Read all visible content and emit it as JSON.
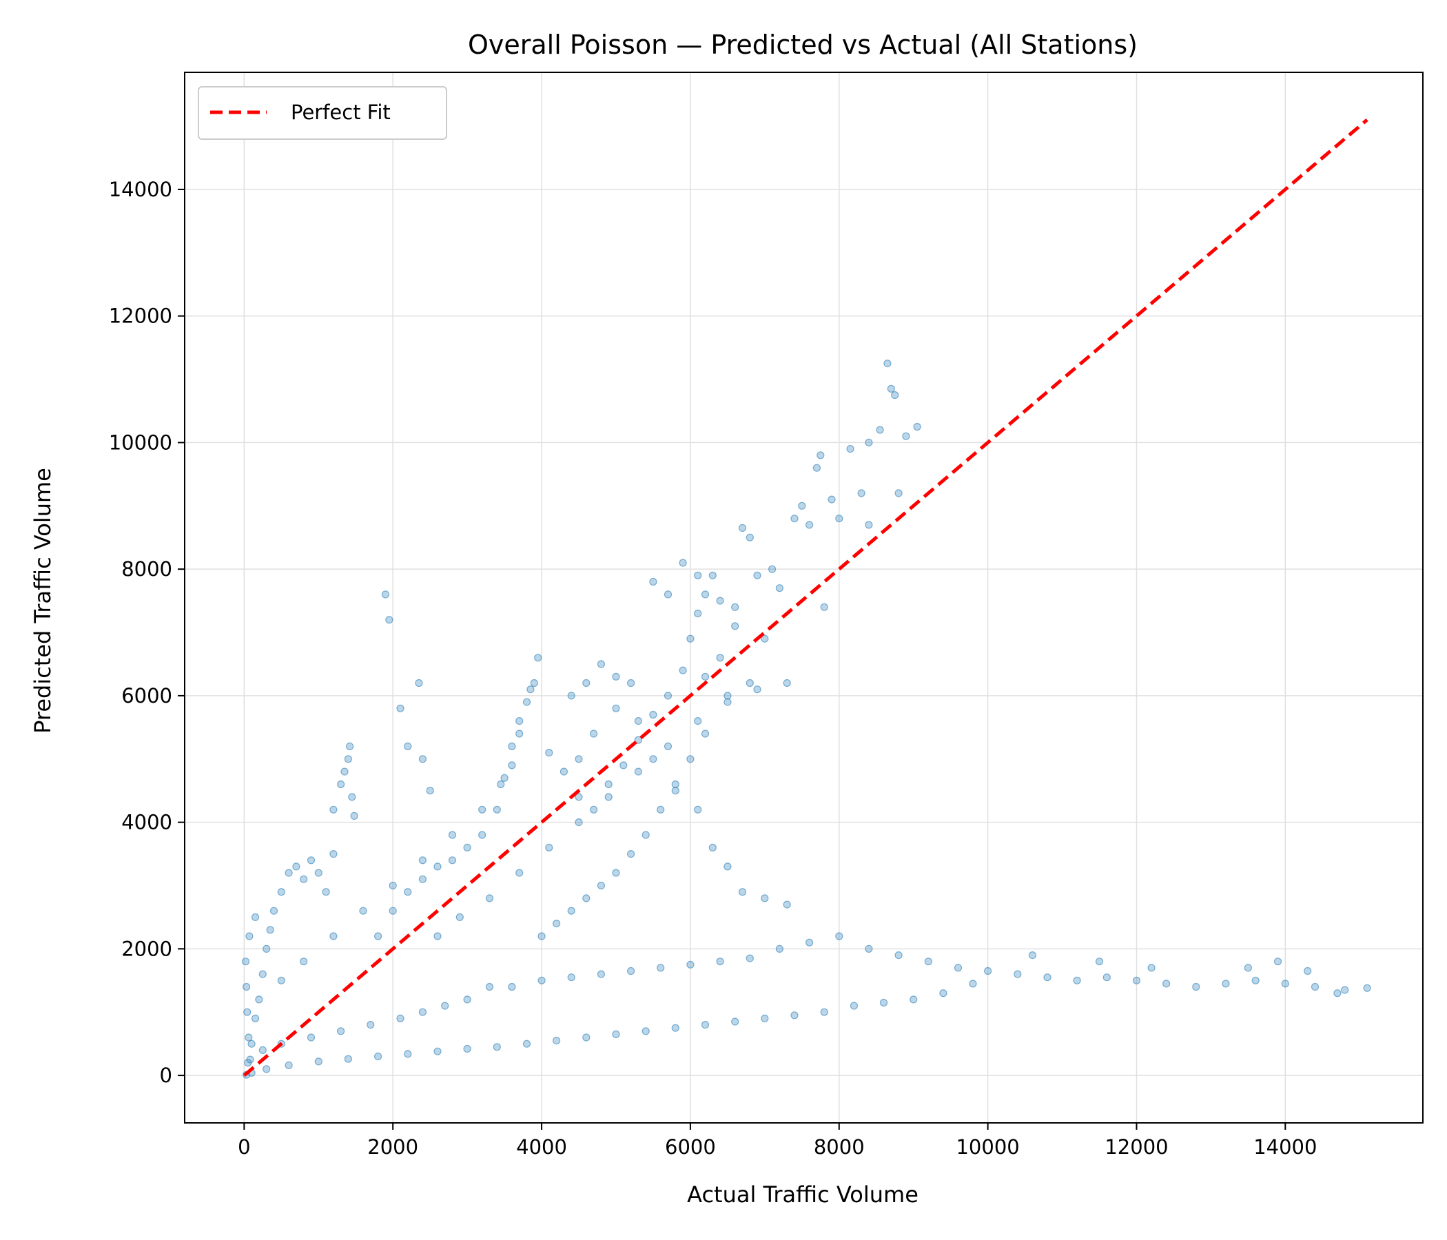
{
  "chart_data": {
    "type": "scatter",
    "title": "Overall Poisson — Predicted vs Actual (All Stations)",
    "xlabel": "Actual Traffic Volume",
    "ylabel": "Predicted Traffic Volume",
    "xlim": [
      -800,
      15850
    ],
    "ylim": [
      -750,
      15850
    ],
    "xticks": [
      0,
      2000,
      4000,
      6000,
      8000,
      10000,
      12000,
      14000
    ],
    "yticks": [
      0,
      2000,
      4000,
      6000,
      8000,
      10000,
      12000,
      14000
    ],
    "xtick_labels": [
      "0",
      "2000",
      "4000",
      "6000",
      "8000",
      "10000",
      "12000",
      "14000"
    ],
    "ytick_labels": [
      "0",
      "2000",
      "4000",
      "6000",
      "8000",
      "10000",
      "12000",
      "14000"
    ],
    "grid": true,
    "legend": {
      "position": "top-left",
      "entries": [
        "Perfect Fit"
      ]
    },
    "series": [
      {
        "kind": "scatter",
        "color": "#1f77b4",
        "opacity": 0.3,
        "points": [
          [
            50,
            200
          ],
          [
            100,
            500
          ],
          [
            150,
            900
          ],
          [
            200,
            1200
          ],
          [
            250,
            1600
          ],
          [
            300,
            2000
          ],
          [
            350,
            2300
          ],
          [
            400,
            2600
          ],
          [
            500,
            2900
          ],
          [
            600,
            3200
          ],
          [
            700,
            3300
          ],
          [
            800,
            3100
          ],
          [
            900,
            3400
          ],
          [
            1000,
            3200
          ],
          [
            1100,
            2900
          ],
          [
            1200,
            3500
          ],
          [
            1300,
            4600
          ],
          [
            1350,
            4800
          ],
          [
            1400,
            5000
          ],
          [
            1420,
            5200
          ],
          [
            1450,
            4400
          ],
          [
            1480,
            4100
          ],
          [
            1200,
            4200
          ],
          [
            1900,
            7600
          ],
          [
            1950,
            7200
          ],
          [
            2100,
            5800
          ],
          [
            2350,
            6200
          ],
          [
            2200,
            5200
          ],
          [
            2400,
            5000
          ],
          [
            2500,
            4500
          ],
          [
            1800,
            2200
          ],
          [
            2000,
            2600
          ],
          [
            2200,
            2900
          ],
          [
            2400,
            3100
          ],
          [
            2600,
            3300
          ],
          [
            2800,
            3400
          ],
          [
            3000,
            3600
          ],
          [
            3200,
            3800
          ],
          [
            3400,
            4200
          ],
          [
            3500,
            4700
          ],
          [
            3600,
            5200
          ],
          [
            3700,
            5600
          ],
          [
            3800,
            5900
          ],
          [
            3900,
            6200
          ],
          [
            3950,
            6600
          ],
          [
            3850,
            6100
          ],
          [
            3700,
            5400
          ],
          [
            3600,
            4900
          ],
          [
            3450,
            4600
          ],
          [
            4100,
            5100
          ],
          [
            4300,
            4800
          ],
          [
            4500,
            4400
          ],
          [
            4700,
            4200
          ],
          [
            4900,
            4600
          ],
          [
            5100,
            4900
          ],
          [
            5300,
            5300
          ],
          [
            5500,
            5700
          ],
          [
            5700,
            6000
          ],
          [
            5900,
            6400
          ],
          [
            6000,
            6900
          ],
          [
            6100,
            7300
          ],
          [
            6200,
            7600
          ],
          [
            6300,
            7900
          ],
          [
            6400,
            7500
          ],
          [
            6600,
            7100
          ],
          [
            6800,
            8500
          ],
          [
            6900,
            7900
          ],
          [
            7100,
            8000
          ],
          [
            7200,
            7700
          ],
          [
            7400,
            8800
          ],
          [
            7500,
            9000
          ],
          [
            7600,
            8700
          ],
          [
            7700,
            9600
          ],
          [
            7750,
            9800
          ],
          [
            7900,
            9100
          ],
          [
            8000,
            8800
          ],
          [
            8150,
            9900
          ],
          [
            8300,
            9200
          ],
          [
            8400,
            10000
          ],
          [
            8550,
            10200
          ],
          [
            8650,
            11250
          ],
          [
            8700,
            10850
          ],
          [
            8750,
            10750
          ],
          [
            8900,
            10100
          ],
          [
            9050,
            10250
          ],
          [
            8800,
            9200
          ],
          [
            8400,
            8700
          ],
          [
            7800,
            7400
          ],
          [
            7300,
            6200
          ],
          [
            6900,
            6100
          ],
          [
            6500,
            5900
          ],
          [
            6200,
            5400
          ],
          [
            6000,
            5000
          ],
          [
            5800,
            4600
          ],
          [
            5600,
            4200
          ],
          [
            5400,
            3800
          ],
          [
            5200,
            3500
          ],
          [
            5000,
            3200
          ],
          [
            4800,
            3000
          ],
          [
            4600,
            2800
          ],
          [
            4400,
            2600
          ],
          [
            4200,
            2400
          ],
          [
            4000,
            2200
          ],
          [
            4800,
            6500
          ],
          [
            4600,
            6200
          ],
          [
            4400,
            6000
          ],
          [
            5000,
            6300
          ],
          [
            5200,
            6200
          ],
          [
            5500,
            7800
          ],
          [
            5700,
            7600
          ],
          [
            5900,
            8100
          ],
          [
            6100,
            7900
          ],
          [
            6700,
            8650
          ],
          [
            6600,
            7400
          ],
          [
            6400,
            6600
          ],
          [
            6200,
            6300
          ],
          [
            6800,
            6200
          ],
          [
            7000,
            6900
          ],
          [
            3600,
            1400
          ],
          [
            4000,
            1500
          ],
          [
            4400,
            1550
          ],
          [
            4800,
            1600
          ],
          [
            5200,
            1650
          ],
          [
            5600,
            1700
          ],
          [
            6000,
            1750
          ],
          [
            6400,
            1800
          ],
          [
            6800,
            1850
          ],
          [
            7200,
            2000
          ],
          [
            7600,
            2100
          ],
          [
            8000,
            2200
          ],
          [
            8400,
            2000
          ],
          [
            8800,
            1900
          ],
          [
            9200,
            1800
          ],
          [
            9600,
            1700
          ],
          [
            10000,
            1650
          ],
          [
            10400,
            1600
          ],
          [
            10800,
            1550
          ],
          [
            11200,
            1500
          ],
          [
            11600,
            1550
          ],
          [
            12000,
            1500
          ],
          [
            12400,
            1450
          ],
          [
            12800,
            1400
          ],
          [
            13200,
            1450
          ],
          [
            13600,
            1500
          ],
          [
            14000,
            1450
          ],
          [
            14400,
            1400
          ],
          [
            14800,
            1350
          ],
          [
            15100,
            1380
          ],
          [
            13500,
            1700
          ],
          [
            13900,
            1800
          ],
          [
            14300,
            1650
          ],
          [
            14700,
            1300
          ],
          [
            12200,
            1700
          ],
          [
            11500,
            1800
          ],
          [
            10600,
            1900
          ],
          [
            9800,
            1450
          ],
          [
            9400,
            1300
          ],
          [
            9000,
            1200
          ],
          [
            8600,
            1150
          ],
          [
            8200,
            1100
          ],
          [
            7800,
            1000
          ],
          [
            7400,
            950
          ],
          [
            7000,
            900
          ],
          [
            6600,
            850
          ],
          [
            6200,
            800
          ],
          [
            5800,
            750
          ],
          [
            5400,
            700
          ],
          [
            5000,
            650
          ],
          [
            4600,
            600
          ],
          [
            4200,
            550
          ],
          [
            3800,
            500
          ],
          [
            3400,
            450
          ],
          [
            3000,
            420
          ],
          [
            2600,
            380
          ],
          [
            2200,
            340
          ],
          [
            1800,
            300
          ],
          [
            1400,
            260
          ],
          [
            1000,
            220
          ],
          [
            600,
            160
          ],
          [
            300,
            100
          ],
          [
            100,
            40
          ],
          [
            30,
            10
          ],
          [
            6700,
            2900
          ],
          [
            7000,
            2800
          ],
          [
            7300,
            2700
          ],
          [
            6500,
            3300
          ],
          [
            6300,
            3600
          ],
          [
            6100,
            4200
          ],
          [
            5800,
            4500
          ],
          [
            5500,
            5000
          ],
          [
            5300,
            5600
          ],
          [
            5000,
            5800
          ],
          [
            4700,
            5400
          ],
          [
            4500,
            5000
          ],
          [
            3000,
            1200
          ],
          [
            3300,
            1400
          ],
          [
            2700,
            1100
          ],
          [
            2400,
            1000
          ],
          [
            2100,
            900
          ],
          [
            1700,
            800
          ],
          [
            1300,
            700
          ],
          [
            900,
            600
          ],
          [
            500,
            500
          ],
          [
            250,
            400
          ],
          [
            80,
            250
          ],
          [
            60,
            600
          ],
          [
            40,
            1000
          ],
          [
            30,
            1400
          ],
          [
            20,
            1800
          ],
          [
            70,
            2200
          ],
          [
            150,
            2500
          ],
          [
            500,
            1500
          ],
          [
            800,
            1800
          ],
          [
            1200,
            2200
          ],
          [
            1600,
            2600
          ],
          [
            2000,
            3000
          ],
          [
            2400,
            3400
          ],
          [
            2800,
            3800
          ],
          [
            3200,
            4200
          ],
          [
            2600,
            2200
          ],
          [
            2900,
            2500
          ],
          [
            3300,
            2800
          ],
          [
            3700,
            3200
          ],
          [
            4100,
            3600
          ],
          [
            4500,
            4000
          ],
          [
            4900,
            4400
          ],
          [
            5300,
            4800
          ],
          [
            5700,
            5200
          ],
          [
            6100,
            5600
          ],
          [
            6500,
            6000
          ]
        ]
      },
      {
        "kind": "line",
        "name": "Perfect Fit",
        "color": "#ff0000",
        "dash": true,
        "x": [
          0,
          15100
        ],
        "y": [
          0,
          15100
        ]
      }
    ]
  }
}
